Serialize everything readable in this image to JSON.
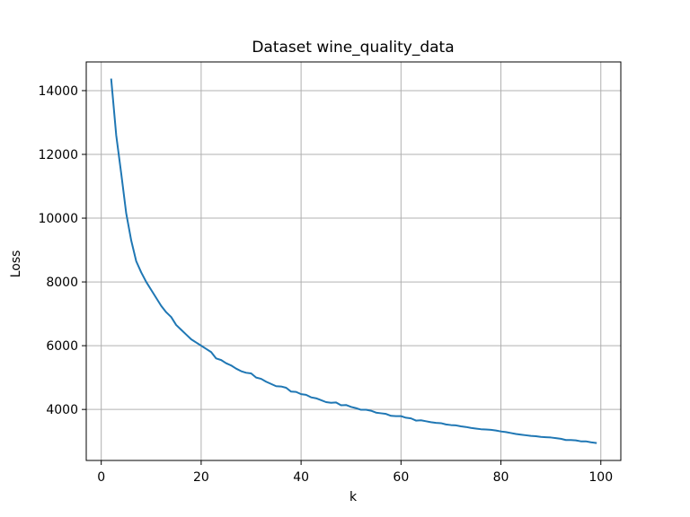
{
  "chart_data": {
    "type": "line",
    "title": "Dataset wine_quality_data",
    "xlabel": "k",
    "ylabel": "Loss",
    "xlim": [
      -3,
      104
    ],
    "ylim": [
      2400,
      14900
    ],
    "xticks": [
      0,
      20,
      40,
      60,
      80,
      100
    ],
    "yticks": [
      4000,
      6000,
      8000,
      10000,
      12000,
      14000
    ],
    "xtick_labels": [
      "0",
      "20",
      "40",
      "60",
      "80",
      "100"
    ],
    "ytick_labels": [
      "4000",
      "6000",
      "8000",
      "10000",
      "12000",
      "14000"
    ],
    "grid": true,
    "series": [
      {
        "color": "#1f77b4",
        "x": [
          2,
          3,
          4,
          5,
          6,
          7,
          8,
          9,
          10,
          11,
          12,
          13,
          14,
          15,
          16,
          17,
          18,
          19,
          20,
          21,
          22,
          23,
          24,
          25,
          26,
          27,
          28,
          29,
          30,
          31,
          32,
          33,
          34,
          35,
          36,
          37,
          38,
          39,
          40,
          41,
          42,
          43,
          44,
          45,
          46,
          47,
          48,
          49,
          50,
          51,
          52,
          53,
          54,
          55,
          56,
          57,
          58,
          59,
          60,
          61,
          62,
          63,
          64,
          65,
          66,
          67,
          68,
          69,
          70,
          71,
          72,
          73,
          74,
          75,
          76,
          77,
          78,
          79,
          80,
          81,
          82,
          83,
          84,
          85,
          86,
          87,
          88,
          89,
          90,
          91,
          92,
          93,
          94,
          95,
          96,
          97,
          98,
          99
        ],
        "y": [
          14350,
          12600,
          11400,
          10150,
          9300,
          8650,
          8300,
          8000,
          7750,
          7500,
          7250,
          7050,
          6900,
          6650,
          6500,
          6350,
          6200,
          6100,
          6000,
          5900,
          5800,
          5600,
          5550,
          5450,
          5380,
          5280,
          5200,
          5150,
          5130,
          5000,
          4960,
          4870,
          4800,
          4730,
          4720,
          4680,
          4560,
          4550,
          4480,
          4460,
          4380,
          4350,
          4290,
          4230,
          4210,
          4220,
          4130,
          4140,
          4080,
          4040,
          3990,
          3990,
          3960,
          3900,
          3880,
          3860,
          3800,
          3790,
          3790,
          3740,
          3720,
          3650,
          3660,
          3630,
          3600,
          3580,
          3570,
          3530,
          3510,
          3500,
          3470,
          3450,
          3420,
          3400,
          3380,
          3370,
          3360,
          3340,
          3310,
          3290,
          3260,
          3230,
          3210,
          3190,
          3170,
          3160,
          3140,
          3130,
          3120,
          3100,
          3080,
          3040,
          3040,
          3030,
          3000,
          3000,
          2970,
          2950
        ]
      }
    ]
  }
}
